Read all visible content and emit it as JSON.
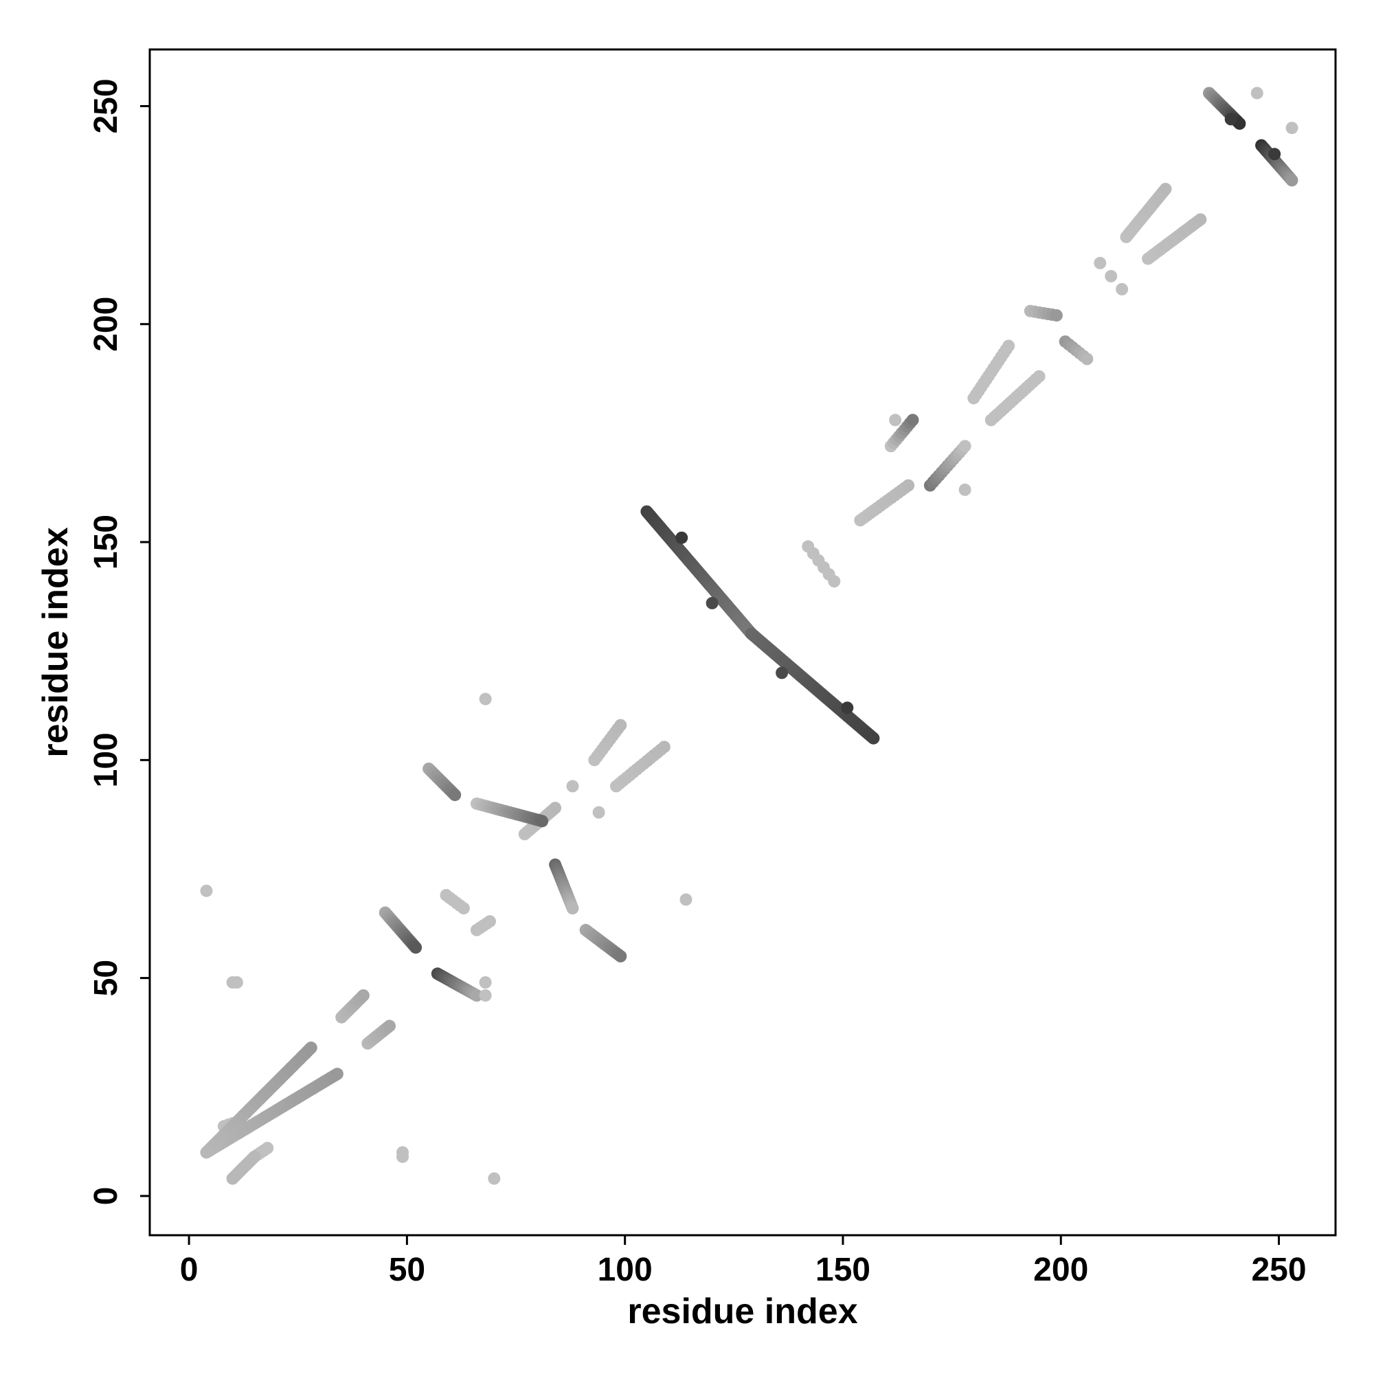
{
  "chart_data": {
    "type": "scatter",
    "title": "",
    "xlabel": "residue index",
    "ylabel": "residue index",
    "xlim": [
      -9,
      263
    ],
    "ylim": [
      -9,
      263
    ],
    "xticks": [
      0,
      50,
      100,
      150,
      200,
      250
    ],
    "yticks": [
      0,
      50,
      100,
      150,
      200,
      250
    ],
    "grid": false,
    "legend": "none",
    "point_color_scale": [
      "#c8c8c8",
      "#2a2a2a"
    ],
    "segments": [
      {
        "x": [
          4,
          34
        ],
        "y": [
          10,
          28
        ],
        "step": 0.6,
        "w": [
          0.1,
          0.3
        ]
      },
      {
        "x": [
          4,
          28
        ],
        "y": [
          10,
          34
        ],
        "step": 0.6,
        "w": [
          0.1,
          0.3
        ]
      },
      {
        "x": [
          10,
          15
        ],
        "y": [
          4,
          9
        ],
        "step": 0.6,
        "w": [
          0.1,
          0.1
        ]
      },
      {
        "x": [
          8,
          11
        ],
        "y": [
          16,
          17
        ],
        "step": 1,
        "w": [
          0.05,
          0.05
        ]
      },
      {
        "x": [
          15,
          18
        ],
        "y": [
          9,
          11
        ],
        "step": 1,
        "w": [
          0.05,
          0.05
        ]
      },
      {
        "x": [
          35,
          40
        ],
        "y": [
          41,
          46
        ],
        "step": 0.6,
        "w": [
          0.1,
          0.2
        ]
      },
      {
        "x": [
          41,
          46
        ],
        "y": [
          35,
          39
        ],
        "step": 0.6,
        "w": [
          0.1,
          0.2
        ]
      },
      {
        "x": [
          45,
          52
        ],
        "y": [
          65,
          57
        ],
        "step": 0.5,
        "w": [
          0.2,
          0.7
        ]
      },
      {
        "x": [
          57,
          66
        ],
        "y": [
          51,
          46
        ],
        "step": 0.5,
        "w": [
          0.8,
          0.2
        ]
      },
      {
        "x": [
          59,
          63
        ],
        "y": [
          69,
          66
        ],
        "step": 1,
        "w": [
          0.05,
          0.05
        ]
      },
      {
        "x": [
          66,
          69
        ],
        "y": [
          61,
          63
        ],
        "step": 1,
        "w": [
          0.05,
          0.05
        ]
      },
      {
        "x": [
          55,
          61
        ],
        "y": [
          98,
          92
        ],
        "step": 0.5,
        "w": [
          0.2,
          0.5
        ]
      },
      {
        "x": [
          66,
          81
        ],
        "y": [
          90,
          86
        ],
        "step": 0.7,
        "w": [
          0.05,
          0.6
        ]
      },
      {
        "x": [
          77,
          84
        ],
        "y": [
          83,
          89
        ],
        "step": 0.7,
        "w": [
          0.05,
          0.1
        ]
      },
      {
        "x": [
          84,
          88
        ],
        "y": [
          76,
          66
        ],
        "step": 0.6,
        "w": [
          0.6,
          0.1
        ]
      },
      {
        "x": [
          91,
          99
        ],
        "y": [
          61,
          55
        ],
        "step": 0.6,
        "w": [
          0.2,
          0.5
        ]
      },
      {
        "x": [
          93,
          99
        ],
        "y": [
          100,
          108
        ],
        "step": 1,
        "w": [
          0.05,
          0.1
        ]
      },
      {
        "x": [
          98,
          109
        ],
        "y": [
          94,
          103
        ],
        "step": 1,
        "w": [
          0.05,
          0.1
        ]
      },
      {
        "x": [
          105,
          129
        ],
        "y": [
          157,
          129
        ],
        "step": 0.4,
        "w": [
          0.85,
          0.5
        ]
      },
      {
        "x": [
          129,
          157
        ],
        "y": [
          129,
          105
        ],
        "step": 0.4,
        "w": [
          0.6,
          0.85
        ]
      },
      {
        "x": [
          142,
          148
        ],
        "y": [
          149,
          141
        ],
        "step": 2,
        "w": [
          0.05,
          0.05
        ]
      },
      {
        "x": [
          154,
          165
        ],
        "y": [
          155,
          163
        ],
        "step": 1,
        "w": [
          0.05,
          0.1
        ]
      },
      {
        "x": [
          161,
          166
        ],
        "y": [
          172,
          178
        ],
        "step": 1,
        "w": [
          0.05,
          0.5
        ]
      },
      {
        "x": [
          170,
          178
        ],
        "y": [
          163,
          172
        ],
        "step": 1,
        "w": [
          0.5,
          0.05
        ]
      },
      {
        "x": [
          180,
          188
        ],
        "y": [
          183,
          195
        ],
        "step": 1,
        "w": [
          0.05,
          0.05
        ]
      },
      {
        "x": [
          184,
          195
        ],
        "y": [
          178,
          188
        ],
        "step": 1,
        "w": [
          0.05,
          0.05
        ]
      },
      {
        "x": [
          193,
          199
        ],
        "y": [
          203,
          202
        ],
        "step": 1,
        "w": [
          0.1,
          0.3
        ]
      },
      {
        "x": [
          201,
          206
        ],
        "y": [
          196,
          192
        ],
        "step": 1,
        "w": [
          0.3,
          0.1
        ]
      },
      {
        "x": [
          209,
          214
        ],
        "y": [
          214,
          208
        ],
        "step": 5,
        "w": [
          0.05,
          0.05
        ]
      },
      {
        "x": [
          215,
          224
        ],
        "y": [
          220,
          231
        ],
        "step": 0.7,
        "w": [
          0.05,
          0.1
        ]
      },
      {
        "x": [
          220,
          232
        ],
        "y": [
          215,
          224
        ],
        "step": 0.7,
        "w": [
          0.05,
          0.1
        ]
      },
      {
        "x": [
          234,
          241
        ],
        "y": [
          253,
          246
        ],
        "step": 0.5,
        "w": [
          0.3,
          0.95
        ]
      },
      {
        "x": [
          246,
          253
        ],
        "y": [
          241,
          233
        ],
        "step": 0.5,
        "w": [
          0.95,
          0.3
        ]
      }
    ],
    "points": [
      {
        "x": 4,
        "y": 70,
        "w": 0.05
      },
      {
        "x": 10,
        "y": 49,
        "w": 0.05
      },
      {
        "x": 11,
        "y": 49,
        "w": 0.05
      },
      {
        "x": 49,
        "y": 10,
        "w": 0.05
      },
      {
        "x": 49,
        "y": 9,
        "w": 0.05
      },
      {
        "x": 70,
        "y": 4,
        "w": 0.05
      },
      {
        "x": 68,
        "y": 114,
        "w": 0.05
      },
      {
        "x": 114,
        "y": 68,
        "w": 0.05
      },
      {
        "x": 88,
        "y": 94,
        "w": 0.05
      },
      {
        "x": 94,
        "y": 88,
        "w": 0.05
      },
      {
        "x": 68,
        "y": 46,
        "w": 0.05
      },
      {
        "x": 68,
        "y": 49,
        "w": 0.05
      },
      {
        "x": 162,
        "y": 178,
        "w": 0.05
      },
      {
        "x": 178,
        "y": 162,
        "w": 0.05
      },
      {
        "x": 245,
        "y": 253,
        "w": 0.05
      },
      {
        "x": 253,
        "y": 245,
        "w": 0.05
      },
      {
        "x": 249,
        "y": 239,
        "w": 0.9
      },
      {
        "x": 239,
        "y": 247,
        "w": 0.9
      },
      {
        "x": 151,
        "y": 112,
        "w": 0.9
      },
      {
        "x": 113,
        "y": 151,
        "w": 0.9
      },
      {
        "x": 120,
        "y": 136,
        "w": 0.8
      },
      {
        "x": 136,
        "y": 120,
        "w": 0.8
      }
    ]
  }
}
